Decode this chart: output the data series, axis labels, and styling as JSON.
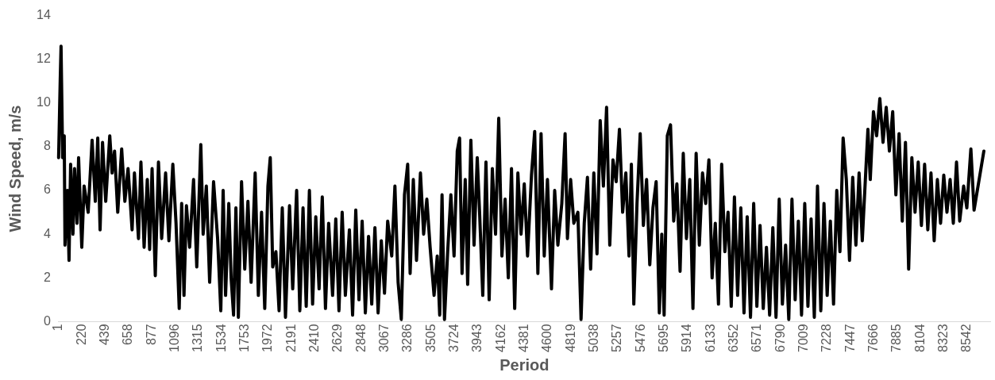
{
  "chart_data": {
    "type": "line",
    "xlabel": "Period",
    "ylabel": "Wind Speed, m/s",
    "xlim": [
      1,
      8760
    ],
    "xticks": [
      1,
      220,
      439,
      658,
      877,
      1096,
      1315,
      1534,
      1753,
      1972,
      2191,
      2410,
      2629,
      2848,
      3067,
      3286,
      3505,
      3724,
      3943,
      4162,
      4381,
      4600,
      4819,
      5038,
      5257,
      5476,
      5695,
      5914,
      6133,
      6352,
      6571,
      6790,
      7009,
      7228,
      7447,
      7666,
      7885,
      8104,
      8323,
      8542
    ],
    "ylim": [
      0,
      14
    ],
    "yticks": [
      0,
      2,
      4,
      6,
      8,
      10,
      12,
      14
    ],
    "grid": false,
    "legend": false,
    "marker": "none",
    "line_style": "solid",
    "series": [
      {
        "color": "#000000",
        "x": [
          1,
          16,
          24,
          39,
          54,
          61,
          84,
          99,
          114,
          136,
          151,
          174,
          189,
          219,
          241,
          279,
          316,
          346,
          369,
          391,
          414,
          444,
          482,
          504,
          527,
          557,
          594,
          624,
          654,
          692,
          714,
          752,
          775,
          805,
          835,
          857,
          880,
          910,
          940,
          970,
          1007,
          1038,
          1075,
          1105,
          1135,
          1158,
          1180,
          1203,
          1233,
          1270,
          1300,
          1338,
          1360,
          1390,
          1421,
          1458,
          1496,
          1526,
          1548,
          1571,
          1601,
          1623,
          1646,
          1668,
          1691,
          1721,
          1751,
          1781,
          1811,
          1849,
          1879,
          1909,
          1939,
          1969,
          1991,
          2014,
          2044,
          2074,
          2104,
          2134,
          2172,
          2202,
          2239,
          2269,
          2299,
          2329,
          2359,
          2389,
          2419,
          2450,
          2480,
          2510,
          2540,
          2577,
          2607,
          2637,
          2667,
          2697,
          2735,
          2765,
          2795,
          2825,
          2855,
          2885,
          2915,
          2945,
          2975,
          3005,
          3035,
          3065,
          3095,
          3133,
          3163,
          3193,
          3223,
          3253,
          3283,
          3306,
          3336,
          3366,
          3403,
          3433,
          3463,
          3494,
          3531,
          3561,
          3584,
          3606,
          3629,
          3659,
          3689,
          3719,
          3749,
          3771,
          3794,
          3824,
          3847,
          3877,
          3907,
          3937,
          3959,
          3989,
          4019,
          4049,
          4079,
          4109,
          4139,
          4169,
          4199,
          4229,
          4259,
          4289,
          4319,
          4349,
          4379,
          4410,
          4447,
          4477,
          4507,
          4537,
          4567,
          4597,
          4635,
          4665,
          4695,
          4732,
          4763,
          4785,
          4815,
          4845,
          4883,
          4913,
          4943,
          4973,
          5003,
          5033,
          5063,
          5093,
          5123,
          5153,
          5183,
          5213,
          5243,
          5274,
          5304,
          5334,
          5364,
          5386,
          5409,
          5439,
          5469,
          5499,
          5529,
          5559,
          5589,
          5619,
          5649,
          5672,
          5694,
          5724,
          5754,
          5784,
          5814,
          5844,
          5874,
          5904,
          5935,
          5965,
          5995,
          6025,
          6055,
          6085,
          6115,
          6145,
          6175,
          6205,
          6235,
          6265,
          6295,
          6325,
          6355,
          6385,
          6415,
          6445,
          6475,
          6506,
          6536,
          6566,
          6596,
          6626,
          6656,
          6686,
          6716,
          6746,
          6776,
          6806,
          6836,
          6866,
          6896,
          6926,
          6956,
          6986,
          7016,
          7046,
          7076,
          7106,
          7136,
          7167,
          7197,
          7227,
          7257,
          7287,
          7317,
          7347,
          7377,
          7407,
          7437,
          7467,
          7497,
          7527,
          7557,
          7587,
          7610,
          7632,
          7662,
          7692,
          7722,
          7752,
          7782,
          7812,
          7843,
          7873,
          7903,
          7933,
          7963,
          7993,
          8023,
          8053,
          8083,
          8113,
          8143,
          8173,
          8203,
          8233,
          8263,
          8293,
          8323,
          8353,
          8383,
          8413,
          8443,
          8473,
          8510,
          8540,
          8578,
          8608,
          8700
        ],
        "values": [
          7.5,
          11,
          12.6,
          7.5,
          8.5,
          3.5,
          6,
          2.8,
          7.2,
          4,
          7,
          4.5,
          7.5,
          3.4,
          6.2,
          5,
          8.3,
          5.5,
          8.4,
          4.2,
          8.2,
          5.5,
          8.5,
          6.8,
          7.8,
          5,
          7.9,
          5.5,
          7,
          4.2,
          6.8,
          3.8,
          7.3,
          3.4,
          6.5,
          3.3,
          7,
          2.1,
          7.3,
          3.8,
          6.8,
          3.7,
          7.2,
          4.5,
          0.6,
          5.4,
          1.2,
          5.3,
          3.4,
          6.5,
          2.5,
          8.1,
          4,
          6.2,
          1.8,
          6.4,
          3.8,
          0.5,
          6,
          1.2,
          5.4,
          2,
          0.3,
          5.2,
          0.2,
          6.4,
          2.4,
          5.5,
          1.8,
          6.8,
          1.2,
          5,
          0.6,
          6.2,
          7.5,
          2.5,
          3.2,
          0.5,
          5.2,
          0.2,
          5.3,
          1.5,
          6,
          0.5,
          5.2,
          0.7,
          6,
          0.8,
          4.8,
          1.5,
          5.7,
          0.6,
          4.5,
          1.2,
          4.7,
          0.5,
          5,
          1.2,
          4.2,
          0.3,
          5.1,
          1,
          4.6,
          0.4,
          3.9,
          0.8,
          4.3,
          0.4,
          3.7,
          1.3,
          4.6,
          3,
          6.2,
          1.8,
          0.1,
          5.8,
          7.2,
          2.2,
          6.5,
          2.8,
          6.8,
          4,
          5.6,
          3.4,
          1.2,
          3,
          0.3,
          5.8,
          0.1,
          3.2,
          5.8,
          3,
          7.8,
          8.4,
          2.2,
          6.5,
          1.7,
          8.3,
          3.5,
          7.5,
          5,
          1.2,
          7.3,
          1,
          7,
          4,
          9.3,
          3,
          5.6,
          2,
          7,
          0.6,
          6.8,
          4,
          6.3,
          3,
          6.7,
          8.7,
          2.2,
          8.6,
          3,
          6.5,
          1.5,
          6,
          3.5,
          5.4,
          8.6,
          3.8,
          6.5,
          4.5,
          5,
          0.1,
          4.5,
          6.6,
          2.4,
          6.8,
          3.1,
          9.2,
          6.2,
          9.8,
          3.5,
          7.4,
          6.4,
          8.8,
          5,
          6.8,
          3,
          7.2,
          0.8,
          5.4,
          8.6,
          4.4,
          6.5,
          2.6,
          5.2,
          6.4,
          0.4,
          4,
          0.3,
          8.5,
          9,
          4.6,
          6.3,
          2.3,
          7.7,
          3.8,
          6.5,
          0.6,
          7.7,
          3.5,
          6.8,
          5.4,
          7.4,
          2,
          4.5,
          0.8,
          7.2,
          3.2,
          5,
          0.7,
          5.7,
          1.2,
          5.2,
          0.4,
          4.8,
          0.2,
          5.4,
          0.7,
          4.4,
          0.6,
          3.4,
          0.3,
          4.3,
          0.2,
          5.6,
          0.8,
          3.5,
          0.1,
          5.6,
          1,
          4.6,
          0.3,
          5.4,
          0.7,
          4.7,
          0.2,
          6.2,
          0.5,
          5.4,
          1.2,
          4.6,
          0.8,
          6,
          3.2,
          8.4,
          6.5,
          2.8,
          6.6,
          3.5,
          6.8,
          3.7,
          6.6,
          8.8,
          6.5,
          9.6,
          8.5,
          10.2,
          8.2,
          9.8,
          7.8,
          9.6,
          5.8,
          8.6,
          4.6,
          8.2,
          2.4,
          7.5,
          5,
          7.3,
          4.4,
          7.2,
          4.2,
          6.8,
          3.7,
          6.5,
          4.5,
          6.7,
          5,
          6.5,
          4.5,
          7.3,
          4.6,
          6.2,
          5.2,
          7.9,
          5.1,
          7.8
        ]
      }
    ]
  }
}
